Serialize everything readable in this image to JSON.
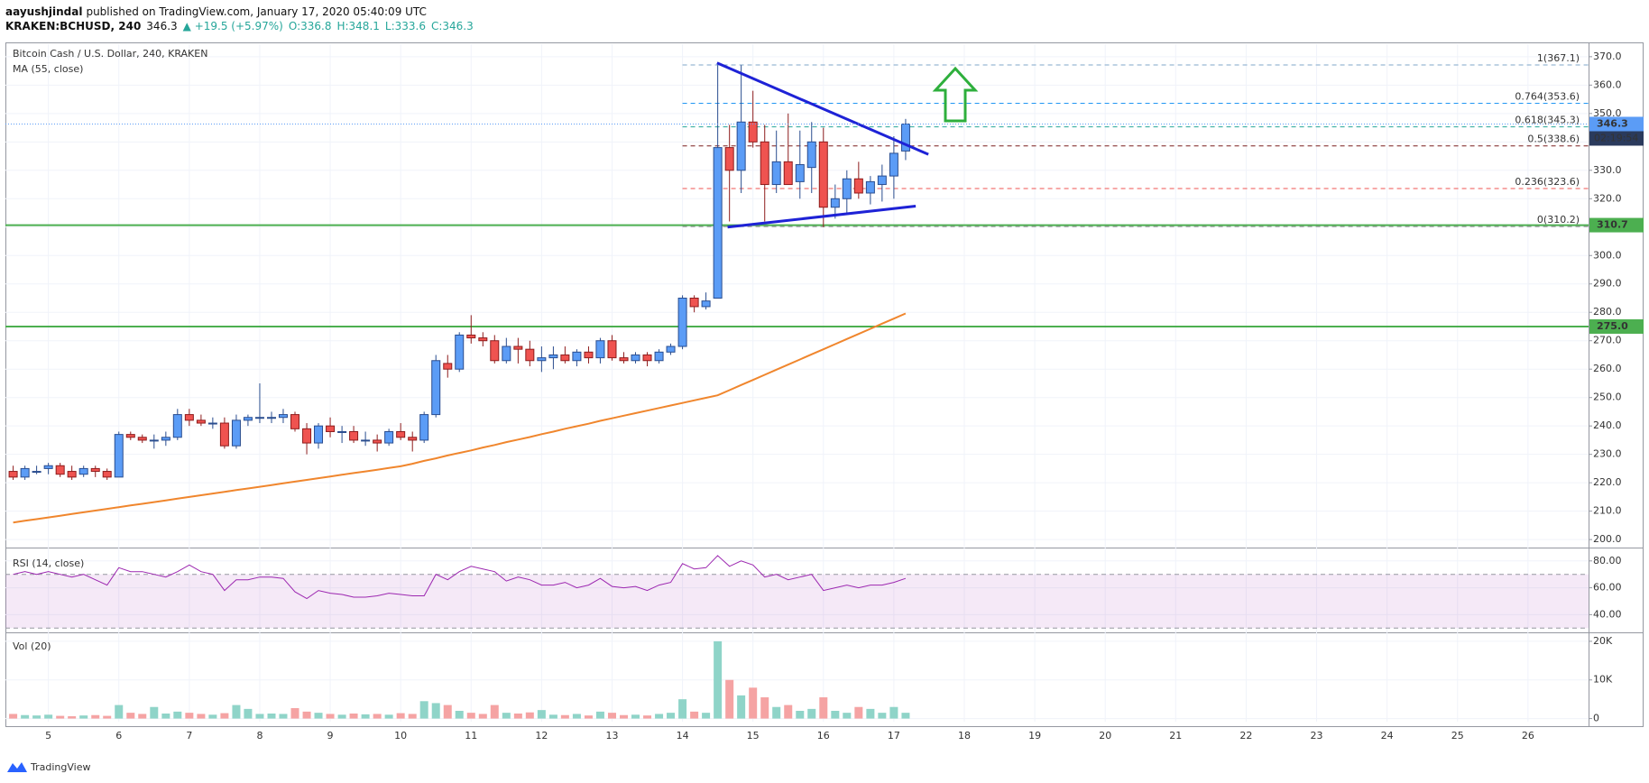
{
  "header": {
    "publisher": "aayushjindal",
    "published": "published on TradingView.com, January 17, 2020 05:40:09 UTC",
    "symbol": "KRAKEN:BCHUSD, 240",
    "last": "346.3",
    "change": "▲ +19.5 (+5.97%)",
    "ohlc": [
      "O:336.8",
      "H:348.1",
      "L:333.6",
      "C:346.3"
    ]
  },
  "footer": "TradingView",
  "chart_data": {
    "type": "candlestick",
    "title": "Bitcoin Cash / U.S. Dollar, 240, KRAKEN",
    "x": [
      4.5,
      4.667,
      4.833,
      5,
      5.167,
      5.333,
      5.5,
      5.667,
      5.833,
      6,
      6.167,
      6.333,
      6.5,
      6.667,
      6.833,
      7,
      7.167,
      7.333,
      7.5,
      7.667,
      7.833,
      8,
      8.167,
      8.333,
      8.5,
      8.667,
      8.833,
      9,
      9.167,
      9.333,
      9.5,
      9.667,
      9.833,
      10,
      10.167,
      10.333,
      10.5,
      10.667,
      10.833,
      11,
      11.167,
      11.333,
      11.5,
      11.667,
      11.833,
      12,
      12.167,
      12.333,
      12.5,
      12.667,
      12.833,
      13,
      13.167,
      13.333,
      13.5,
      13.667,
      13.833,
      14,
      14.167,
      14.333,
      14.5,
      14.667,
      14.833,
      15,
      15.167,
      15.333,
      15.5,
      15.667,
      15.833,
      16,
      16.167,
      16.333,
      16.5,
      16.667,
      16.833,
      17,
      17.167
    ],
    "open": [
      224,
      222,
      224,
      225,
      226,
      224,
      223,
      225,
      224,
      222,
      237,
      236,
      235,
      235,
      236,
      244,
      242,
      241,
      241,
      233,
      242,
      243,
      243,
      243,
      244,
      239,
      234,
      240,
      238,
      238,
      235,
      235,
      234,
      238,
      236,
      235,
      244,
      262,
      260,
      272,
      271,
      270,
      263,
      268,
      267,
      263,
      264,
      265,
      263,
      266,
      264,
      270,
      264,
      263,
      265,
      263,
      266,
      268,
      285,
      282,
      285,
      338,
      330,
      347,
      340,
      325,
      333,
      326,
      331,
      340,
      317,
      320,
      327,
      322,
      325,
      328,
      336.8
    ],
    "high": [
      226,
      226,
      226,
      227,
      227,
      226,
      226,
      226,
      225,
      238,
      238,
      237,
      237,
      238,
      246,
      246,
      244,
      243,
      243,
      244,
      244,
      255,
      245,
      246,
      245,
      241,
      241,
      243,
      240,
      240,
      238,
      237,
      239,
      241,
      238,
      245,
      265,
      265,
      273,
      279,
      273,
      272,
      271,
      271,
      270,
      268,
      268,
      268,
      267,
      268,
      271,
      272,
      266,
      266,
      266,
      267,
      269,
      286,
      286,
      287,
      367,
      346,
      367,
      358,
      346,
      344,
      350,
      344,
      347,
      345,
      325,
      330,
      333,
      328,
      332,
      342,
      348.1
    ],
    "low": [
      221,
      221,
      223,
      223,
      222,
      221,
      222,
      222,
      221,
      222,
      235,
      234,
      232,
      233,
      235,
      240,
      240,
      239,
      232,
      232,
      240,
      241,
      241,
      241,
      238,
      230,
      232,
      236,
      234,
      234,
      233,
      231,
      233,
      235,
      231,
      234,
      243,
      257,
      259,
      269,
      268,
      262,
      262,
      262,
      261,
      259,
      260,
      262,
      261,
      262,
      262,
      263,
      262,
      262,
      261,
      262,
      265,
      267,
      280,
      281,
      285,
      312,
      322,
      338,
      312,
      322,
      325,
      320,
      322,
      310,
      313,
      315,
      320,
      318,
      319,
      320,
      333.6
    ],
    "close": [
      222,
      225,
      224,
      226,
      223,
      222,
      225,
      224,
      222,
      237,
      236,
      235,
      235,
      236,
      244,
      242,
      241,
      241,
      233,
      242,
      243,
      243,
      243,
      244,
      239,
      234,
      240,
      238,
      238,
      235,
      235,
      234,
      238,
      236,
      235,
      244,
      263,
      260,
      272,
      271,
      270,
      263,
      268,
      267,
      263,
      264,
      265,
      263,
      266,
      264,
      270,
      264,
      263,
      265,
      263,
      266,
      268,
      285,
      282,
      284,
      338,
      330,
      347,
      340,
      325,
      333,
      325,
      332,
      340,
      317,
      320,
      327,
      322,
      326,
      328,
      336,
      346.3
    ],
    "up_color": "#5b9cf6",
    "down_color": "#ef5350",
    "up_border": "#2a4d8f",
    "down_border": "#8e1c1c",
    "xlim": [
      4.39,
      26.86
    ],
    "xticks": [
      5,
      6,
      7,
      8,
      9,
      10,
      11,
      12,
      13,
      14,
      15,
      16,
      17,
      18,
      19,
      20,
      21,
      22,
      23,
      24,
      25,
      26
    ],
    "ylim": [
      197.5,
      374.4
    ],
    "yticks": [
      {
        "value": 200,
        "label": "200.0"
      },
      {
        "value": 210,
        "label": "210.0"
      },
      {
        "value": 220,
        "label": "220.0"
      },
      {
        "value": 230,
        "label": "230.0"
      },
      {
        "value": 240,
        "label": "240.0"
      },
      {
        "value": 250,
        "label": "250.0"
      },
      {
        "value": 260,
        "label": "260.0"
      },
      {
        "value": 270,
        "label": "270.0"
      },
      {
        "value": 280,
        "label": "280.0"
      },
      {
        "value": 290,
        "label": "290.0"
      },
      {
        "value": 300,
        "label": "300.0"
      },
      {
        "value": 310,
        "label": "310.0"
      },
      {
        "value": 320,
        "label": "320.0"
      },
      {
        "value": 330,
        "label": "330.0"
      },
      {
        "value": 340,
        "label": "340.0"
      },
      {
        "value": 350,
        "label": "350.0"
      },
      {
        "value": 360,
        "label": "360.0"
      },
      {
        "value": 370,
        "label": "370.0"
      }
    ],
    "grid": true,
    "ma": {
      "name": "MA (55, close)",
      "color": "#f0862d",
      "values": [
        206,
        206.6,
        207.2,
        207.8,
        208.4,
        209,
        209.6,
        210.2,
        210.8,
        211.4,
        212,
        212.6,
        213.2,
        213.8,
        214.4,
        215,
        215.6,
        216.2,
        216.8,
        217.4,
        218,
        218.6,
        219.2,
        219.8,
        220.4,
        221,
        221.6,
        222.2,
        222.8,
        223.4,
        224,
        224.6,
        225.2,
        225.8,
        226.7,
        227.7,
        228.6,
        229.6,
        230.5,
        231.4,
        232.4,
        233.3,
        234.3,
        235.2,
        236.1,
        237.1,
        238,
        239,
        239.9,
        240.8,
        241.8,
        242.7,
        243.6,
        244.5,
        245.4,
        246.3,
        247.2,
        248.1,
        249,
        249.9,
        250.8,
        252.6,
        254.4,
        256.2,
        258,
        259.8,
        261.6,
        263.4,
        265.2,
        267,
        268.8,
        270.6,
        272.4,
        274.2,
        276,
        277.8,
        279.6
      ]
    },
    "levels": [
      {
        "value": 310.7,
        "label": "310.7",
        "color": "#4caf50"
      },
      {
        "value": 275,
        "label": "275.0",
        "color": "#4caf50"
      }
    ],
    "last_price": {
      "value": 346.3,
      "label": "346.3",
      "countdown": "02:19:54",
      "color": "#5b9cf6"
    },
    "fib": {
      "x_start": 14,
      "levels": [
        {
          "label": "1(367.1)",
          "value": 367.1,
          "color": "#7fa7c9"
        },
        {
          "label": "0.764(353.6)",
          "value": 353.6,
          "color": "#2196f3"
        },
        {
          "label": "0.618(345.3)",
          "value": 345.3,
          "color": "#26a69a"
        },
        {
          "label": "0.5(338.6)",
          "value": 338.6,
          "color": "#7a1f1f"
        },
        {
          "label": "0.236(323.6)",
          "value": 323.6,
          "color": "#ef5350"
        },
        {
          "label": "0(310.2)",
          "value": 310.2,
          "color": "#888888"
        }
      ]
    },
    "trendlines": [
      {
        "x": [
          14.49,
          17.49
        ],
        "y": [
          367.8,
          335.6
        ],
        "color": "#1e22d6"
      },
      {
        "x": [
          14.64,
          17.31
        ],
        "y": [
          310,
          317.4
        ],
        "color": "#1e22d6"
      }
    ],
    "rsi": {
      "name": "RSI (14, close)",
      "color": "#9c27b0",
      "band": [
        30,
        70
      ],
      "ylim": [
        27.5,
        88.6
      ],
      "yticks": [
        {
          "value": 40,
          "label": "40.00"
        },
        {
          "value": 60,
          "label": "60.00"
        },
        {
          "value": 80,
          "label": "80.00"
        }
      ],
      "values": [
        70,
        72,
        70,
        72,
        70,
        68,
        70,
        66,
        62,
        75,
        72,
        72,
        70,
        68,
        72,
        77,
        72,
        70,
        58,
        66,
        66,
        68,
        68,
        67,
        57,
        52,
        58,
        56,
        55,
        53,
        53,
        54,
        56,
        55,
        54,
        54,
        70,
        66,
        72,
        76,
        74,
        72,
        65,
        68,
        66,
        62,
        62,
        64,
        60,
        62,
        67,
        61,
        60,
        61,
        58,
        62,
        64,
        78,
        74,
        75,
        84,
        76,
        80,
        77,
        68,
        70,
        66,
        68,
        70,
        58,
        60,
        62,
        60,
        62,
        62,
        64,
        67
      ]
    },
    "volume": {
      "name": "Vol (20)",
      "up_color": "#8fd4c8",
      "down_color": "#f5a3a3",
      "ylim": [
        -800,
        21850
      ],
      "yticks": [
        0,
        {
          "value": 10000,
          "label": "10K"
        },
        {
          "value": 20000,
          "label": "20K"
        }
      ],
      "values": [
        1200,
        900,
        800,
        1000,
        700,
        600,
        800,
        900,
        700,
        3500,
        1500,
        1200,
        3000,
        1300,
        1800,
        1500,
        1200,
        1000,
        1400,
        3500,
        2500,
        1200,
        1300,
        1200,
        2700,
        1800,
        1500,
        1200,
        1000,
        1300,
        1100,
        1200,
        1000,
        1400,
        1200,
        4500,
        4000,
        3500,
        2000,
        1500,
        1200,
        3500,
        1500,
        1300,
        1600,
        2200,
        1000,
        900,
        1200,
        800,
        1800,
        1500,
        900,
        1000,
        800,
        1200,
        1500,
        5000,
        1800,
        1500,
        20000,
        10000,
        6000,
        8000,
        5500,
        3000,
        3500,
        2000,
        2500,
        5500,
        2000,
        1500,
        3000,
        2500,
        1500,
        3000,
        1500
      ]
    }
  }
}
